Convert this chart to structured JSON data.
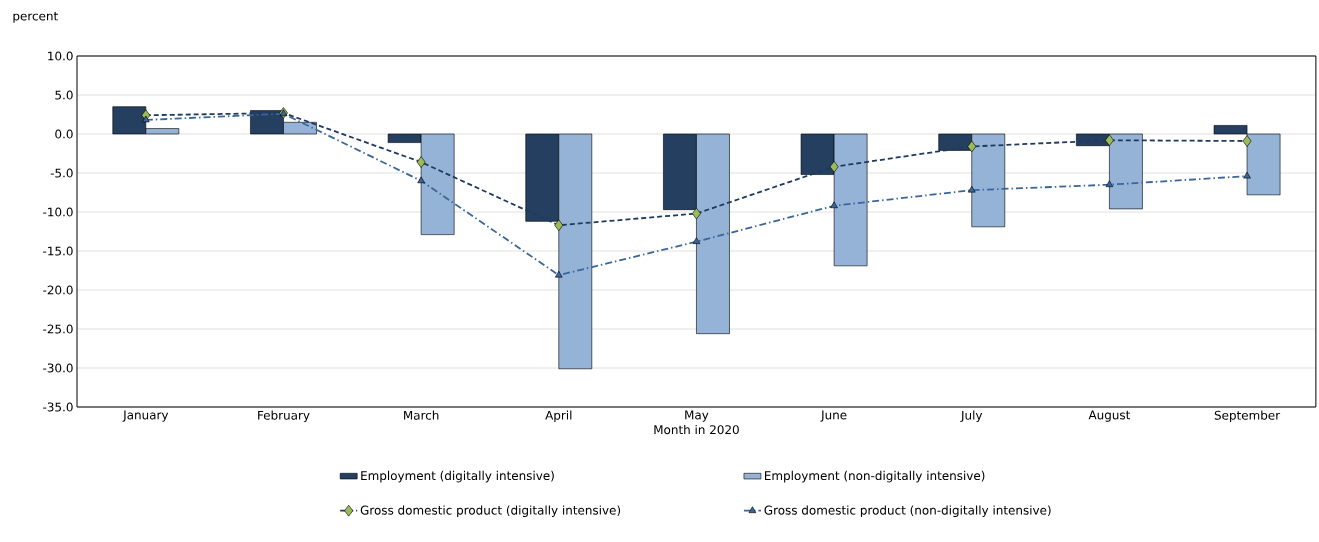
{
  "chart_data": {
    "type": "bar",
    "xlabel": "Month in 2020",
    "ylabel": "percent",
    "categories": [
      "January",
      "February",
      "March",
      "April",
      "May",
      "June",
      "July",
      "August",
      "September"
    ],
    "series": [
      {
        "name": "Employment (digitally intensive)",
        "color": "#243f60",
        "values": [
          3.5,
          3.0,
          -1.1,
          -11.2,
          -9.7,
          -5.2,
          -2.1,
          -1.5,
          1.1
        ]
      },
      {
        "name": "Employment (non-digitally intensive)",
        "color": "#95b3d7",
        "values": [
          0.7,
          1.5,
          -12.9,
          -30.1,
          -25.6,
          -16.9,
          -11.9,
          -9.6,
          -7.8
        ]
      },
      {
        "name": "Gross domestic product (digitally intensive)",
        "type": "line",
        "color": "#1f3a60",
        "marker": "diamond",
        "line_style": "dashed",
        "values": [
          2.4,
          2.7,
          -3.6,
          -11.7,
          -10.2,
          -4.2,
          -1.6,
          -0.8,
          -0.9
        ]
      },
      {
        "name": "Gross domestic product (non-digitally intensive)",
        "type": "line",
        "color": "#3a6699",
        "marker": "triangle",
        "line_style": "dashed",
        "values": [
          1.8,
          2.6,
          -6.0,
          -18.1,
          -13.8,
          -9.2,
          -7.2,
          -6.5,
          -5.4
        ]
      }
    ],
    "ylim": [
      -35,
      10
    ],
    "yticks": [
      {
        "value": -35,
        "label": "-35.0"
      },
      {
        "value": -30,
        "label": "-30.0"
      },
      {
        "value": -25,
        "label": "-25.0"
      },
      {
        "value": -20,
        "label": "-20.0"
      },
      {
        "value": -15,
        "label": "-15.0"
      },
      {
        "value": -10,
        "label": "-10.0"
      },
      {
        "value": -5,
        "label": "-5.0"
      },
      {
        "value": 0,
        "label": "0.0"
      },
      {
        "value": 5,
        "label": "5.0"
      },
      {
        "value": 10,
        "label": "10.0"
      }
    ],
    "grid": "y",
    "legend": "bottom"
  }
}
